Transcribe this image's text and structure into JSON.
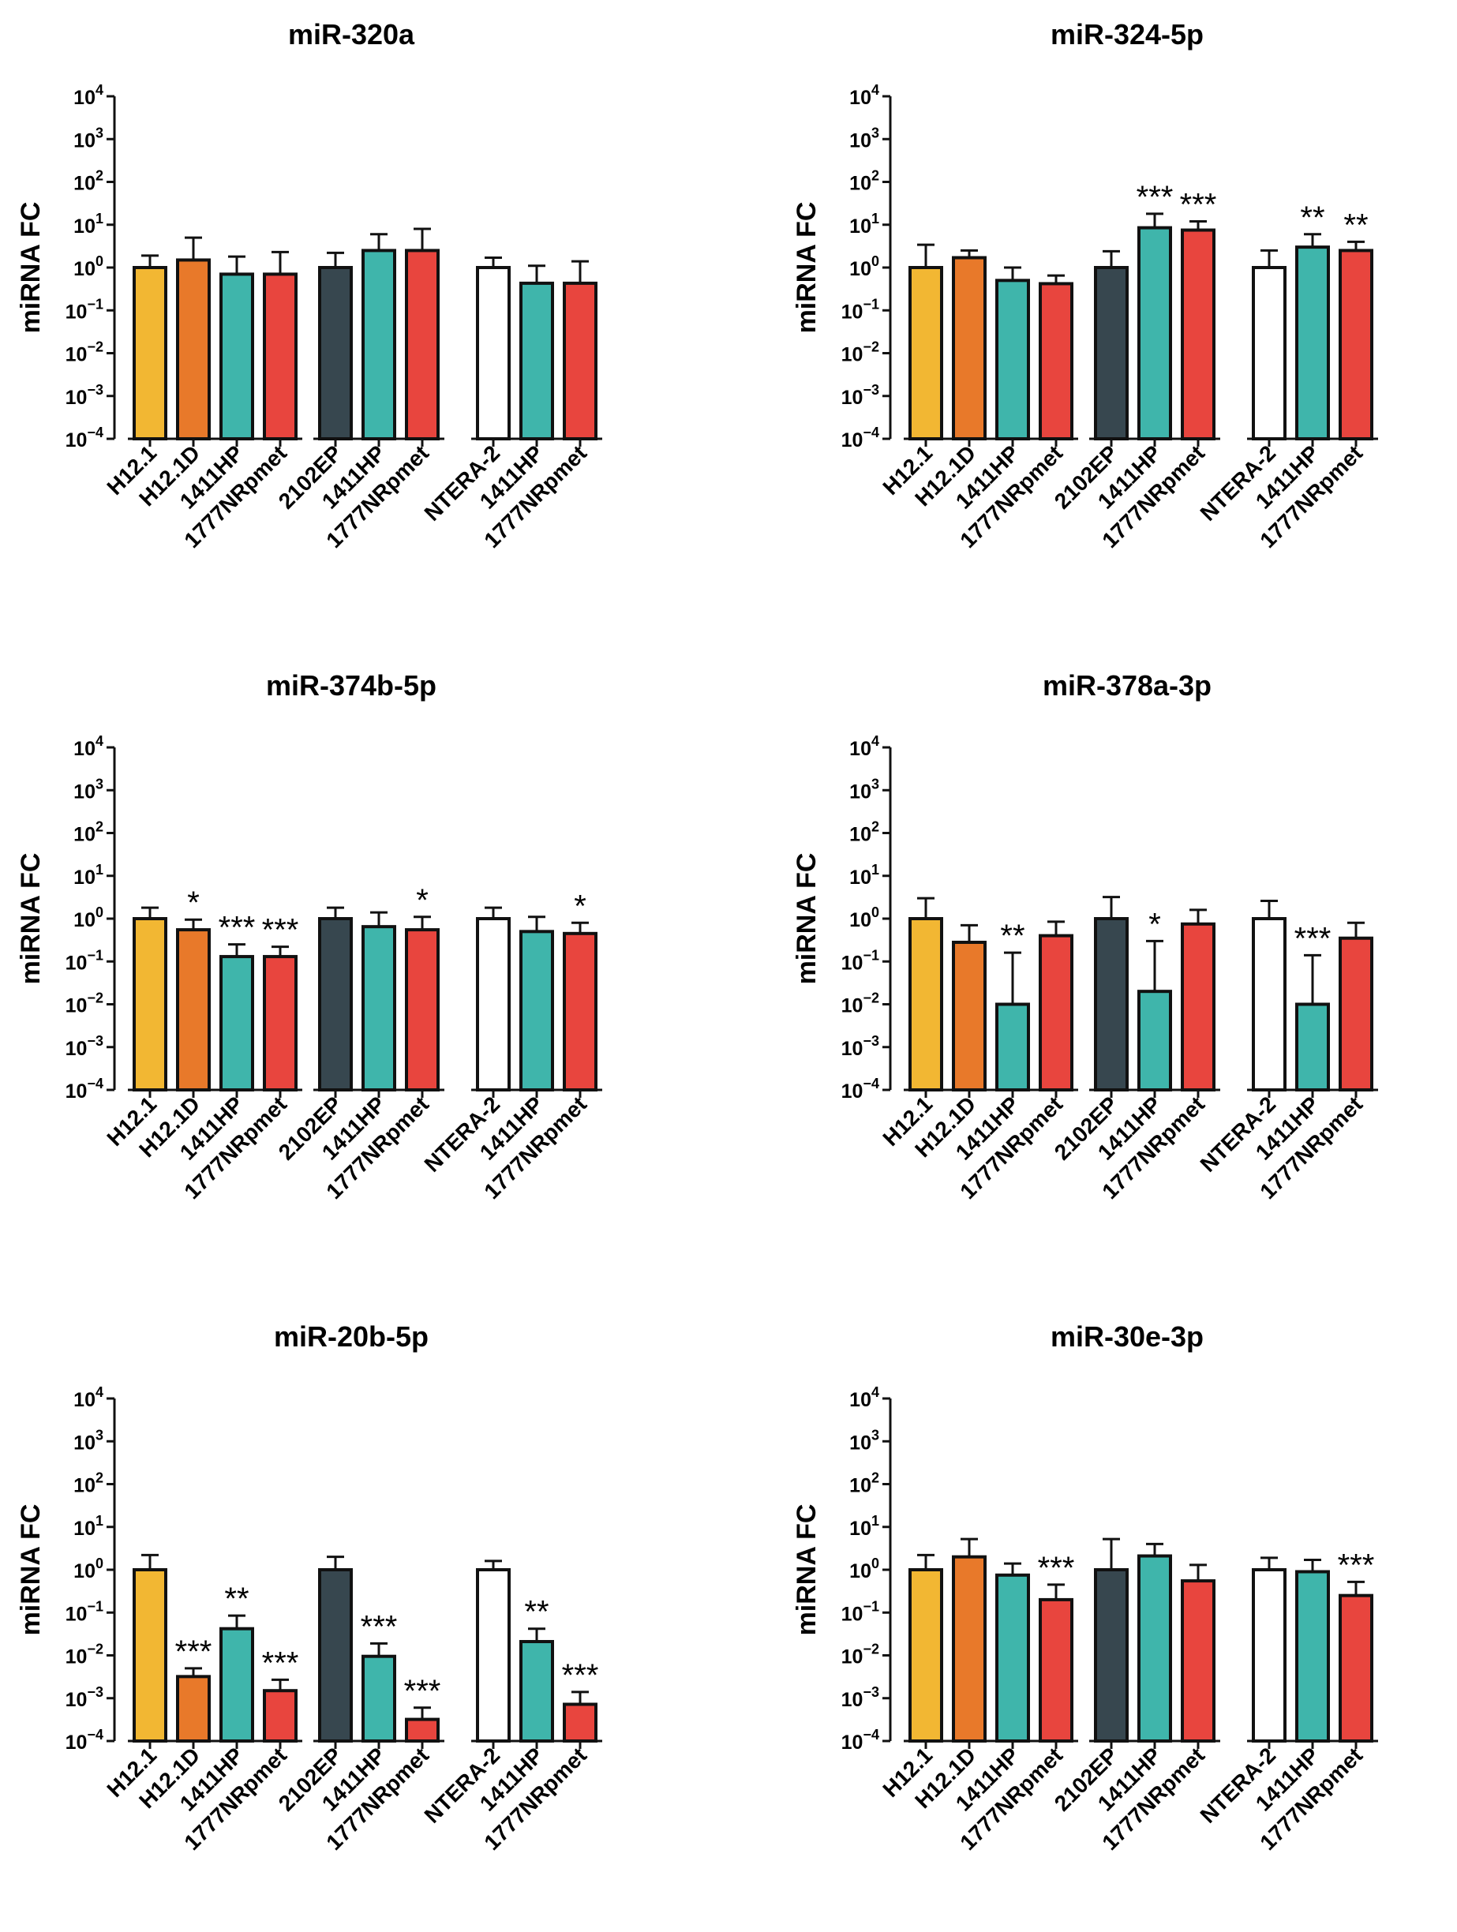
{
  "chart_data": [
    {
      "type": "bar",
      "title": "miR-320a",
      "ylabel": "miRNA FC",
      "yscale": "log",
      "ylim": [
        0.0001,
        10000
      ],
      "yticks": [
        "10",
        "10",
        "10",
        "10",
        "10",
        "10",
        "10",
        "10",
        "10"
      ],
      "ytick_exponents": [
        "-4",
        "-3",
        "-2",
        "-1",
        "0",
        "1",
        "2",
        "3",
        "4"
      ],
      "groups": [
        {
          "categories": [
            "H12.1",
            "H12.1D",
            "1411HP",
            "1777NRpmet"
          ],
          "values": [
            1.0,
            1.5,
            0.7,
            0.7
          ],
          "error_upper": [
            1.9,
            5.0,
            1.8,
            2.3
          ],
          "significance": [
            "",
            "",
            "",
            ""
          ]
        },
        {
          "categories": [
            "2102EP",
            "1411HP",
            "1777NRpmet"
          ],
          "values": [
            1.0,
            2.5,
            2.5
          ],
          "error_upper": [
            2.2,
            6.0,
            8.0
          ],
          "significance": [
            "",
            "",
            ""
          ]
        },
        {
          "categories": [
            "NTERA-2",
            "1411HP",
            "1777NRpmet"
          ],
          "values": [
            1.0,
            0.43,
            0.43
          ],
          "error_upper": [
            1.7,
            1.1,
            1.4
          ],
          "significance": [
            "",
            "",
            ""
          ]
        }
      ]
    },
    {
      "type": "bar",
      "title": "miR-324-5p",
      "ylabel": "miRNA FC",
      "yscale": "log",
      "ylim": [
        0.0001,
        10000
      ],
      "yticks": [
        "10",
        "10",
        "10",
        "10",
        "10",
        "10",
        "10",
        "10",
        "10"
      ],
      "ytick_exponents": [
        "-4",
        "-3",
        "-2",
        "-1",
        "0",
        "1",
        "2",
        "3",
        "4"
      ],
      "groups": [
        {
          "categories": [
            "H12.1",
            "H12.1D",
            "1411HP",
            "1777NRpmet"
          ],
          "values": [
            1.0,
            1.7,
            0.5,
            0.42
          ],
          "error_upper": [
            3.4,
            2.5,
            1.0,
            0.65
          ],
          "significance": [
            "",
            "",
            "",
            ""
          ]
        },
        {
          "categories": [
            "2102EP",
            "1411HP",
            "1777NRpmet"
          ],
          "values": [
            1.0,
            8.5,
            7.5
          ],
          "error_upper": [
            2.4,
            18.0,
            12.0
          ],
          "significance": [
            "",
            "***",
            "***"
          ]
        },
        {
          "categories": [
            "NTERA-2",
            "1411HP",
            "1777NRpmet"
          ],
          "values": [
            1.0,
            3.0,
            2.5
          ],
          "error_upper": [
            2.5,
            6.0,
            4.0
          ],
          "significance": [
            "",
            "**",
            "**"
          ]
        }
      ]
    },
    {
      "type": "bar",
      "title": "miR-374b-5p",
      "ylabel": "miRNA FC",
      "yscale": "log",
      "ylim": [
        0.0001,
        10000
      ],
      "yticks": [
        "10",
        "10",
        "10",
        "10",
        "10",
        "10",
        "10",
        "10",
        "10"
      ],
      "ytick_exponents": [
        "-4",
        "-3",
        "-2",
        "-1",
        "0",
        "1",
        "2",
        "3",
        "4"
      ],
      "groups": [
        {
          "categories": [
            "H12.1",
            "H12.1D",
            "1411HP",
            "1777NRpmet"
          ],
          "values": [
            1.0,
            0.55,
            0.13,
            0.13
          ],
          "error_upper": [
            1.8,
            0.95,
            0.25,
            0.22
          ],
          "significance": [
            "",
            "*",
            "***",
            "***"
          ]
        },
        {
          "categories": [
            "2102EP",
            "1411HP",
            "1777NRpmet"
          ],
          "values": [
            1.0,
            0.65,
            0.55
          ],
          "error_upper": [
            1.8,
            1.4,
            1.1
          ],
          "significance": [
            "",
            "",
            "*"
          ]
        },
        {
          "categories": [
            "NTERA-2",
            "1411HP",
            "1777NRpmet"
          ],
          "values": [
            1.0,
            0.5,
            0.45
          ],
          "error_upper": [
            1.8,
            1.1,
            0.8
          ],
          "significance": [
            "",
            "",
            "*"
          ]
        }
      ]
    },
    {
      "type": "bar",
      "title": "miR-378a-3p",
      "ylabel": "miRNA FC",
      "yscale": "log",
      "ylim": [
        0.0001,
        10000
      ],
      "yticks": [
        "10",
        "10",
        "10",
        "10",
        "10",
        "10",
        "10",
        "10",
        "10"
      ],
      "ytick_exponents": [
        "-4",
        "-3",
        "-2",
        "-1",
        "0",
        "1",
        "2",
        "3",
        "4"
      ],
      "groups": [
        {
          "categories": [
            "H12.1",
            "H12.1D",
            "1411HP",
            "1777NRpmet"
          ],
          "values": [
            1.0,
            0.28,
            0.01,
            0.4
          ],
          "error_upper": [
            3.0,
            0.7,
            0.16,
            0.85
          ],
          "significance": [
            "",
            "",
            "**",
            ""
          ]
        },
        {
          "categories": [
            "2102EP",
            "1411HP",
            "1777NRpmet"
          ],
          "values": [
            1.0,
            0.02,
            0.75
          ],
          "error_upper": [
            3.2,
            0.3,
            1.6
          ],
          "significance": [
            "",
            "*",
            ""
          ]
        },
        {
          "categories": [
            "NTERA-2",
            "1411HP",
            "1777NRpmet"
          ],
          "values": [
            1.0,
            0.01,
            0.35
          ],
          "error_upper": [
            2.6,
            0.14,
            0.8
          ],
          "significance": [
            "",
            "***",
            ""
          ]
        }
      ]
    },
    {
      "type": "bar",
      "title": "miR-20b-5p",
      "ylabel": "miRNA FC",
      "yscale": "log",
      "ylim": [
        0.0001,
        10000
      ],
      "yticks": [
        "10",
        "10",
        "10",
        "10",
        "10",
        "10",
        "10",
        "10",
        "10"
      ],
      "ytick_exponents": [
        "-4",
        "-3",
        "-2",
        "-1",
        "0",
        "1",
        "2",
        "3",
        "4"
      ],
      "groups": [
        {
          "categories": [
            "H12.1",
            "H12.1D",
            "1411HP",
            "1777NRpmet"
          ],
          "values": [
            1.0,
            0.0032,
            0.042,
            0.0015
          ],
          "error_upper": [
            2.2,
            0.005,
            0.085,
            0.0027
          ],
          "significance": [
            "",
            "***",
            "**",
            "***"
          ]
        },
        {
          "categories": [
            "2102EP",
            "1411HP",
            "1777NRpmet"
          ],
          "values": [
            1.0,
            0.0095,
            0.00032
          ],
          "error_upper": [
            2.0,
            0.019,
            0.0006
          ],
          "significance": [
            "",
            "***",
            "***"
          ]
        },
        {
          "categories": [
            "NTERA-2",
            "1411HP",
            "1777NRpmet"
          ],
          "values": [
            1.0,
            0.021,
            0.00072
          ],
          "error_upper": [
            1.6,
            0.042,
            0.0014
          ],
          "significance": [
            "",
            "**",
            "***"
          ]
        }
      ]
    },
    {
      "type": "bar",
      "title": "miR-30e-3p",
      "ylabel": "miRNA FC",
      "yscale": "log",
      "ylim": [
        0.0001,
        10000
      ],
      "yticks": [
        "10",
        "10",
        "10",
        "10",
        "10",
        "10",
        "10",
        "10",
        "10"
      ],
      "ytick_exponents": [
        "-4",
        "-3",
        "-2",
        "-1",
        "0",
        "1",
        "2",
        "3",
        "4"
      ],
      "groups": [
        {
          "categories": [
            "H12.1",
            "H12.1D",
            "1411HP",
            "1777NRpmet"
          ],
          "values": [
            1.0,
            2.0,
            0.75,
            0.2
          ],
          "error_upper": [
            2.2,
            5.2,
            1.4,
            0.45
          ],
          "significance": [
            "",
            "",
            "",
            "***"
          ]
        },
        {
          "categories": [
            "2102EP",
            "1411HP",
            "1777NRpmet"
          ],
          "values": [
            1.0,
            2.1,
            0.55
          ],
          "error_upper": [
            5.2,
            4.0,
            1.3
          ],
          "significance": [
            "",
            "",
            ""
          ]
        },
        {
          "categories": [
            "NTERA-2",
            "1411HP",
            "1777NRpmet"
          ],
          "values": [
            1.0,
            0.9,
            0.25
          ],
          "error_upper": [
            1.9,
            1.7,
            0.52
          ],
          "significance": [
            "",
            "",
            "***"
          ]
        }
      ]
    }
  ],
  "colors": {
    "H12.1": "#f2b733",
    "H12.1D": "#e8792a",
    "1411HP": "#3fb5ab",
    "1777NRpmet": "#e8453e",
    "2102EP": "#37474f",
    "NTERA-2": "#ffffff",
    "stroke": "#111111"
  }
}
